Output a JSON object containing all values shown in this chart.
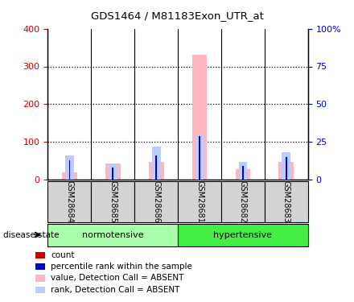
{
  "title": "GDS1464 / M81183Exon_UTR_at",
  "samples": [
    "GSM28684",
    "GSM28685",
    "GSM28686",
    "GSM28681",
    "GSM28682",
    "GSM28683"
  ],
  "groups": [
    {
      "name": "normotensive",
      "count": 3,
      "color": "#AAFFAA"
    },
    {
      "name": "hypertensive",
      "count": 3,
      "color": "#44EE44"
    }
  ],
  "value_absent": [
    20,
    42,
    47,
    330,
    28,
    48
  ],
  "rank_absent_pct": [
    16,
    10,
    22,
    30,
    12,
    18
  ],
  "count_red": [
    3,
    4,
    3,
    3,
    3,
    3
  ],
  "rank_blue_pct": [
    13,
    8,
    16,
    29,
    9,
    15
  ],
  "ylim_left": [
    0,
    400
  ],
  "ylim_right": [
    0,
    100
  ],
  "yticks_left": [
    0,
    100,
    200,
    300,
    400
  ],
  "yticks_right": [
    0,
    25,
    50,
    75,
    100
  ],
  "ytick_labels_right": [
    "0",
    "25",
    "50",
    "75",
    "100%"
  ],
  "left_color": "#CC0000",
  "right_color": "#0000CC",
  "group_label": "disease state",
  "legend_items": [
    {
      "label": "count",
      "color": "#CC0000"
    },
    {
      "label": "percentile rank within the sample",
      "color": "#0000CC"
    },
    {
      "label": "value, Detection Call = ABSENT",
      "color": "#FFB6C1"
    },
    {
      "label": "rank, Detection Call = ABSENT",
      "color": "#BBCCFF"
    }
  ],
  "background_color": "#FFFFFF",
  "tick_label_bg": "#D3D3D3",
  "grid_color": "#000000"
}
